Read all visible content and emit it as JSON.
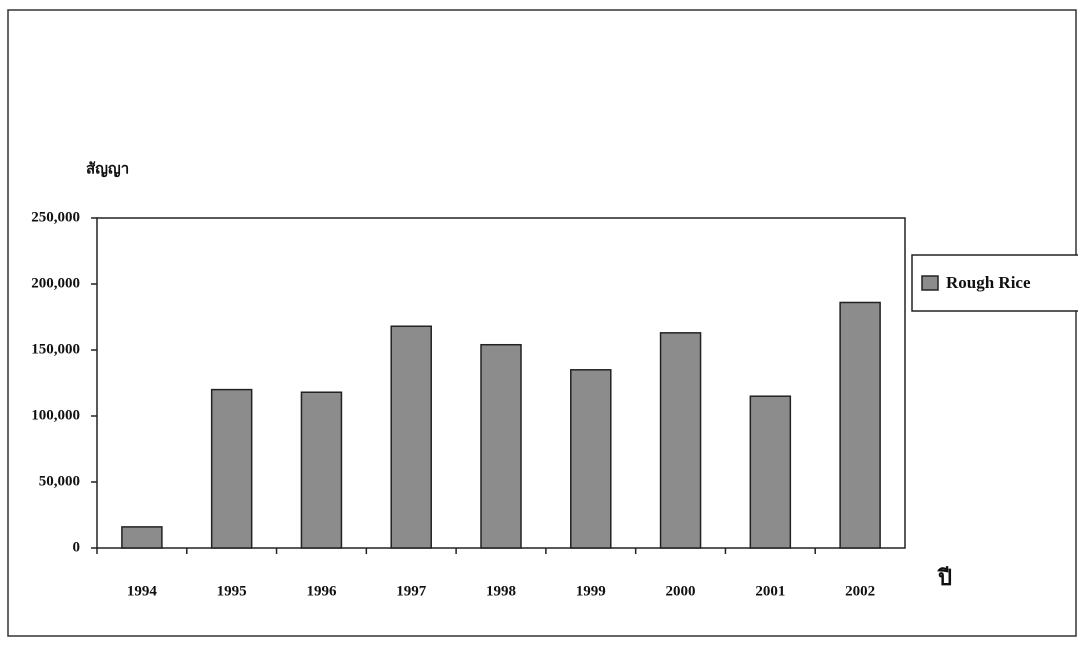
{
  "chart_data": {
    "type": "bar",
    "y_label": "สัญญา",
    "x_label": "ปี",
    "categories": [
      "1994",
      "1995",
      "1996",
      "1997",
      "1998",
      "1999",
      "2000",
      "2001",
      "2002"
    ],
    "series": [
      {
        "name": "Rough Rice",
        "color": "#8c8c8c",
        "values": [
          16000,
          120000,
          118000,
          168000,
          154000,
          135000,
          163000,
          115000,
          186000
        ]
      }
    ],
    "ylim": [
      0,
      250000
    ],
    "yticks": [
      0,
      {
        "value": 50000,
        "label": "50,000"
      },
      {
        "value": 100000,
        "label": "100,000"
      },
      {
        "value": 150000,
        "label": "150,000"
      },
      {
        "value": 200000,
        "label": "200,000"
      },
      {
        "value": 250000,
        "label": "250,000"
      }
    ],
    "legend": "right"
  }
}
